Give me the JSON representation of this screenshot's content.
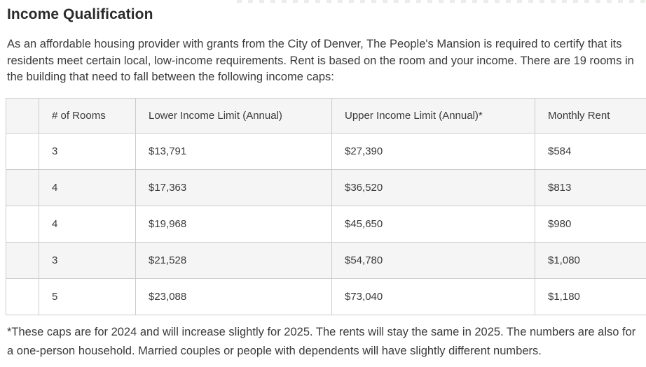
{
  "page": {
    "title": "Income Qualification",
    "intro": "As an affordable housing provider with grants from the City of Denver, The People's Mansion is required to certify that its residents meet certain local, low-income requirements. Rent is based on the room and your income. There are 19 rooms in the building that need to fall between the following income caps:",
    "footnote": "*These caps are for 2024 and will increase slightly for 2025. The rents will stay the same in 2025. The numbers are also for a one-person household. Married couples or people with dependents will have slightly different numbers."
  },
  "table": {
    "columns": [
      "",
      "# of Rooms",
      "Lower Income Limit (Annual)",
      "Upper Income Limit (Annual)*",
      "Monthly Rent"
    ],
    "rows": [
      [
        "",
        "3",
        "$13,791",
        "$27,390",
        "$584"
      ],
      [
        "",
        "4",
        "$17,363",
        "$36,520",
        "$813"
      ],
      [
        "",
        "4",
        "$19,968",
        "$45,650",
        "$980"
      ],
      [
        "",
        "3",
        "$21,528",
        "$54,780",
        "$1,080"
      ],
      [
        "",
        "5",
        "$23,088",
        "$73,040",
        "$1,180"
      ]
    ]
  },
  "colors": {
    "heading_text": "#2b2b2b",
    "body_text": "#3b3b3b",
    "table_border": "#cccccc",
    "header_row_bg": "#f5f5f5",
    "alt_row_bg": "#f5f5f5"
  }
}
